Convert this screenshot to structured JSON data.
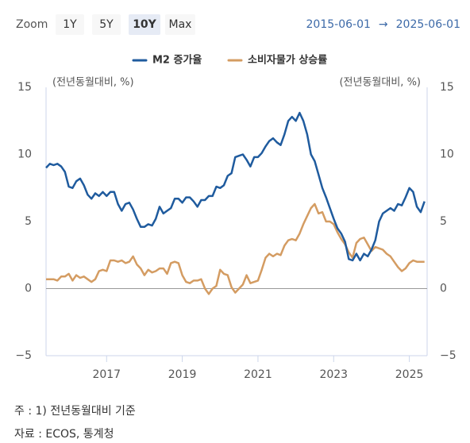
{
  "range_selector": {
    "label": "Zoom",
    "buttons": [
      "1Y",
      "5Y",
      "10Y",
      "Max"
    ],
    "selected": 2
  },
  "date_range": {
    "start": "2015-06-01",
    "arrow": "→",
    "end": "2025-06-01"
  },
  "chart_data": {
    "type": "line",
    "y_label": "(전년동월대비, %)",
    "y2_label": "(전년동월대비, %)",
    "legend": "top",
    "x": [
      2015.4,
      2015.5,
      2015.6,
      2015.7,
      2015.8,
      2015.9,
      2016.0,
      2016.1,
      2016.2,
      2016.3,
      2016.4,
      2016.5,
      2016.6,
      2016.7,
      2016.8,
      2016.9,
      2017.0,
      2017.1,
      2017.2,
      2017.3,
      2017.4,
      2017.5,
      2017.6,
      2017.7,
      2017.8,
      2017.9,
      2018.0,
      2018.1,
      2018.2,
      2018.3,
      2018.4,
      2018.5,
      2018.6,
      2018.7,
      2018.8,
      2018.9,
      2019.0,
      2019.1,
      2019.2,
      2019.3,
      2019.4,
      2019.5,
      2019.6,
      2019.7,
      2019.8,
      2019.9,
      2020.0,
      2020.1,
      2020.2,
      2020.3,
      2020.4,
      2020.5,
      2020.6,
      2020.7,
      2020.8,
      2020.9,
      2021.0,
      2021.1,
      2021.2,
      2021.3,
      2021.4,
      2021.5,
      2021.6,
      2021.7,
      2021.8,
      2021.9,
      2022.0,
      2022.1,
      2022.2,
      2022.3,
      2022.4,
      2022.5,
      2022.6,
      2022.7,
      2022.8,
      2022.9,
      2023.0,
      2023.1,
      2023.2,
      2023.3,
      2023.4,
      2023.5,
      2023.6,
      2023.7,
      2023.8,
      2023.9,
      2024.0,
      2024.1,
      2024.2,
      2024.3,
      2024.4,
      2024.5,
      2024.6,
      2024.7,
      2024.8,
      2024.9,
      2025.0,
      2025.1,
      2025.2,
      2025.3,
      2025.4
    ],
    "series": [
      {
        "name": "M2 증가율",
        "color": "#1f5b9e",
        "values": [
          9.0,
          9.3,
          9.2,
          9.3,
          9.1,
          8.7,
          7.6,
          7.5,
          8.0,
          8.2,
          7.7,
          7.0,
          6.7,
          7.1,
          6.9,
          7.2,
          6.9,
          7.2,
          7.2,
          6.3,
          5.8,
          6.3,
          6.4,
          5.9,
          5.2,
          4.6,
          4.6,
          4.8,
          4.7,
          5.2,
          6.1,
          5.6,
          5.8,
          6.0,
          6.7,
          6.7,
          6.4,
          6.8,
          6.8,
          6.5,
          6.1,
          6.6,
          6.6,
          6.9,
          6.9,
          7.6,
          7.5,
          7.7,
          8.4,
          8.6,
          9.8,
          9.9,
          10.0,
          9.6,
          9.1,
          9.8,
          9.8,
          10.1,
          10.6,
          11.0,
          11.2,
          10.9,
          10.7,
          11.5,
          12.5,
          12.8,
          12.5,
          13.1,
          12.5,
          11.5,
          10.0,
          9.5,
          8.5,
          7.5,
          6.8,
          6.0,
          5.2,
          4.5,
          4.1,
          3.5,
          2.2,
          2.1,
          2.6,
          2.1,
          2.6,
          2.4,
          2.9,
          3.6,
          5.0,
          5.6,
          5.8,
          6.0,
          5.8,
          6.3,
          6.2,
          6.8,
          7.5,
          7.2,
          6.1,
          5.7,
          6.5
        ]
      },
      {
        "name": "소비자물가 상승률",
        "color": "#d49c62",
        "values": [
          0.7,
          0.7,
          0.7,
          0.6,
          0.9,
          0.9,
          1.1,
          0.6,
          1.0,
          0.8,
          0.9,
          0.7,
          0.5,
          0.7,
          1.3,
          1.4,
          1.3,
          2.1,
          2.1,
          2.0,
          2.1,
          1.9,
          2.0,
          2.4,
          1.8,
          1.5,
          1.0,
          1.4,
          1.2,
          1.3,
          1.5,
          1.5,
          1.1,
          1.9,
          2.0,
          1.9,
          1.0,
          0.5,
          0.4,
          0.6,
          0.6,
          0.7,
          0.0,
          -0.4,
          0.0,
          0.2,
          1.4,
          1.1,
          1.0,
          0.1,
          -0.3,
          0.0,
          0.3,
          1.0,
          0.4,
          0.5,
          0.6,
          1.4,
          2.3,
          2.6,
          2.4,
          2.6,
          2.5,
          3.2,
          3.6,
          3.7,
          3.6,
          4.1,
          4.8,
          5.4,
          6.0,
          6.3,
          5.6,
          5.7,
          5.0,
          5.0,
          4.8,
          4.2,
          3.7,
          3.3,
          2.7,
          2.3,
          3.4,
          3.7,
          3.8,
          3.3,
          2.8,
          3.1,
          3.0,
          2.9,
          2.6,
          2.4,
          2.0,
          1.6,
          1.3,
          1.5,
          1.9,
          2.1,
          2.0,
          2.0,
          2.0
        ]
      }
    ],
    "xlim": [
      2015.4,
      2025.47
    ],
    "xticks": [
      2017,
      2019,
      2021,
      2023,
      2025
    ],
    "ylim": [
      -5,
      15
    ],
    "yticks": [
      15,
      10,
      5,
      0,
      {
        "value": -5,
        "label": "−5"
      }
    ],
    "y2lim": [
      -5,
      15
    ],
    "y2ticks": [
      15,
      10,
      5,
      0,
      {
        "value": -5,
        "label": "−5"
      }
    ]
  },
  "notes": [
    "주 : 1) 전년동월대비 기준",
    "자료 : ECOS, 통계청"
  ]
}
